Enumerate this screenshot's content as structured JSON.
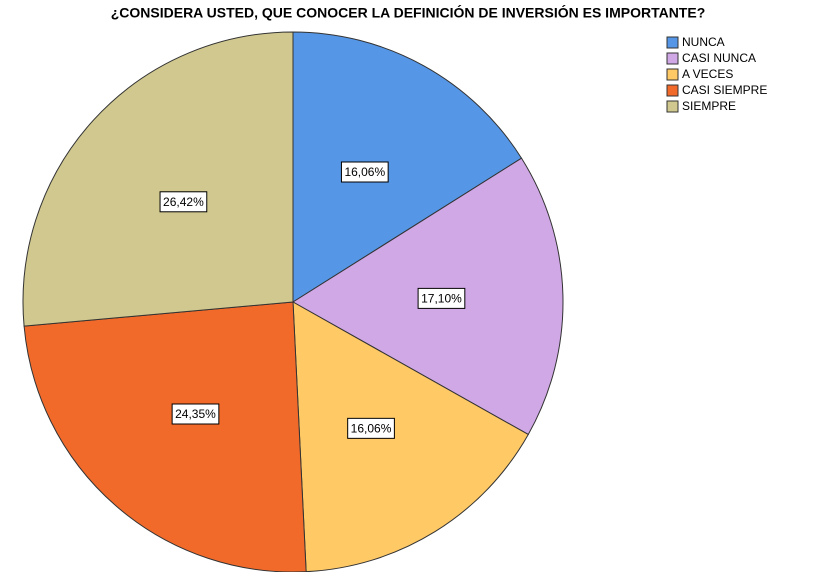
{
  "chart_data": {
    "type": "pie",
    "title": "¿CONSIDERA USTED, QUE CONOCER LA DEFINICIÓN DE INVERSIÓN ES IMPORTANTE?",
    "categories": [
      "NUNCA",
      "CASI NUNCA",
      "A VECES",
      "CASI SIEMPRE",
      "SIEMPRE"
    ],
    "values": [
      16.06,
      17.1,
      16.06,
      24.35,
      26.42
    ],
    "value_labels": [
      "16,06%",
      "17,10%",
      "16,06%",
      "24,35%",
      "26,42%"
    ],
    "colors": [
      "#5596e6",
      "#d0a8e6",
      "#ffc966",
      "#f26a2a",
      "#d0c88e"
    ],
    "legend": "top-right"
  }
}
